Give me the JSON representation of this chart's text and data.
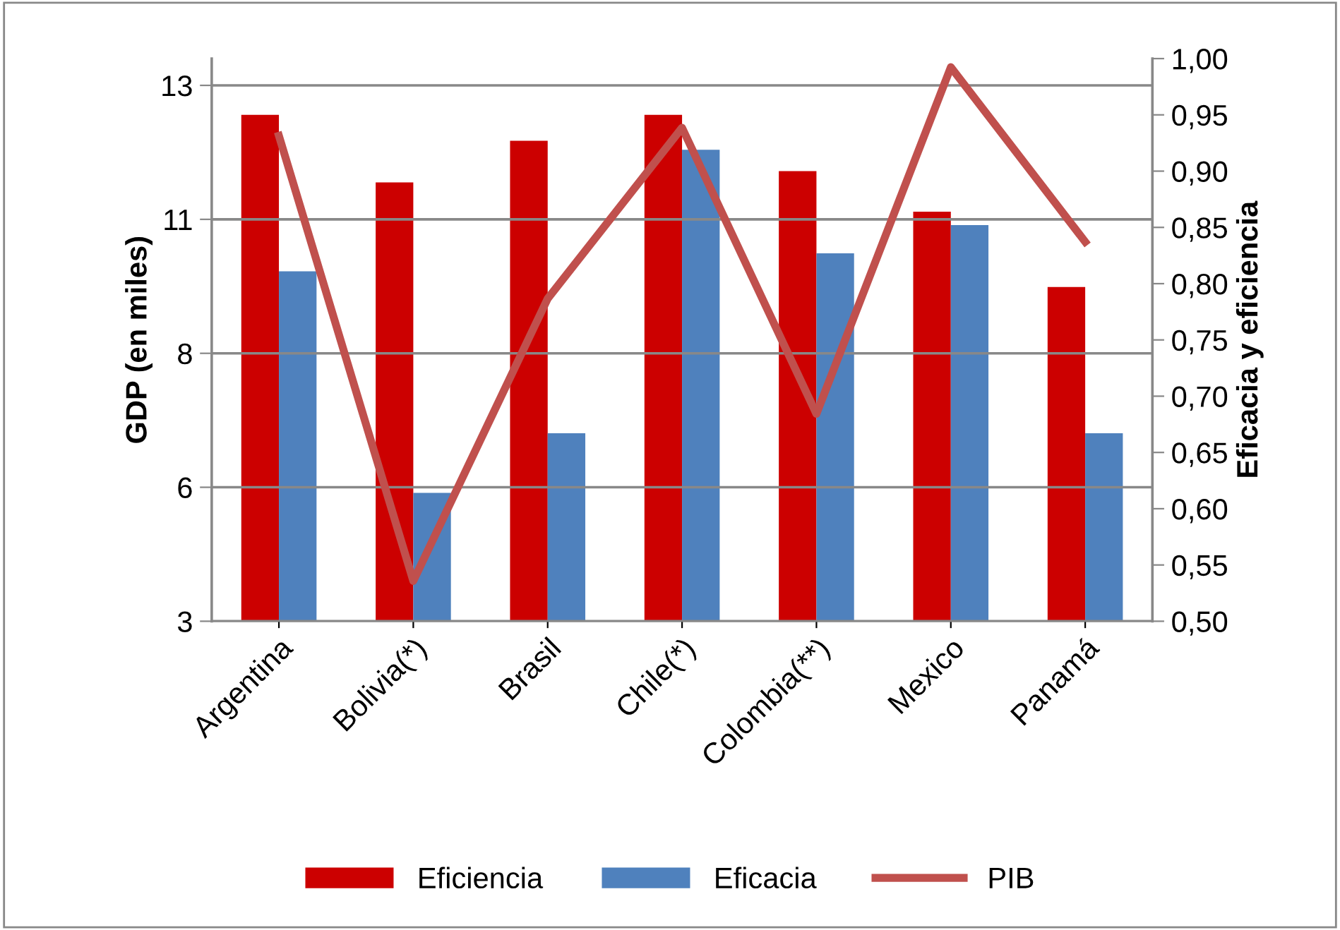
{
  "chart_data": {
    "type": "bar",
    "categories": [
      "Argentina",
      "Bolivia(*)",
      "Brasil",
      "Chile(*)",
      "Colombia(**)",
      "Mexico",
      "Panamá"
    ],
    "ylabel": "GDP (en miles)",
    "y2label": "Eficacia y eficiencia",
    "ylim": [
      3,
      13.5
    ],
    "yticks": [
      3,
      {
        "value": 5.5,
        "label": "6"
      },
      8,
      {
        "value": 10.5,
        "label": "11"
      },
      13
    ],
    "y2lim": [
      0.5,
      1.0
    ],
    "y2ticks": [
      {
        "value": 0.5,
        "label": "0,50"
      },
      {
        "value": 0.55,
        "label": "0,55"
      },
      {
        "value": 0.6,
        "label": "0,60"
      },
      {
        "value": 0.65,
        "label": "0,65"
      },
      {
        "value": 0.7,
        "label": "0,70"
      },
      {
        "value": 0.75,
        "label": "0,75"
      },
      {
        "value": 0.8,
        "label": "0,80"
      },
      {
        "value": 0.85,
        "label": "0,85"
      },
      {
        "value": 0.9,
        "label": "0,90"
      },
      {
        "value": 0.95,
        "label": "0,95"
      },
      {
        "value": 1.0,
        "label": "1,00"
      }
    ],
    "grid": "y",
    "legend": "bottom",
    "series": [
      {
        "name": "Eficiencia",
        "axis": "y2",
        "color": "#cc0000",
        "values": [
          0.95,
          0.89,
          0.927,
          0.95,
          0.9,
          0.864,
          0.797
        ]
      },
      {
        "name": "Eficacia",
        "axis": "y2",
        "color": "#4f81bd",
        "values": [
          0.811,
          0.614,
          0.667,
          0.919,
          0.827,
          0.852,
          0.667
        ]
      },
      {
        "name": "PIB",
        "type": "line",
        "color": "#c0504d",
        "values": [
          12.06,
          3.75,
          9.02,
          12.21,
          6.87,
          13.34,
          10.08
        ]
      }
    ]
  }
}
